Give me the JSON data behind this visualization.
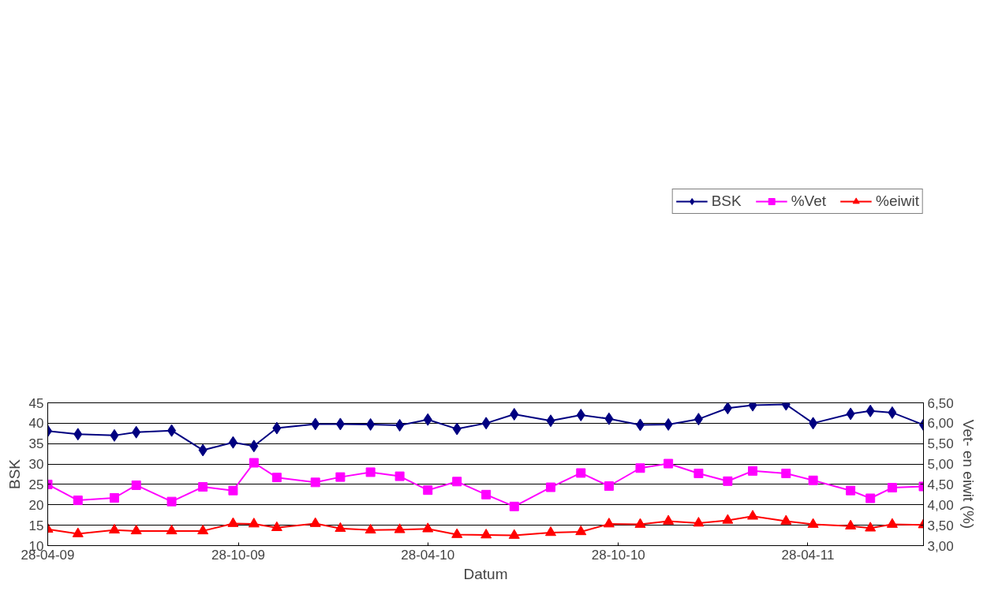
{
  "chart_data": {
    "type": "line",
    "xlabel": "Datum",
    "ylabel": "BSK",
    "y2label": "Vet- en eiwit (%)",
    "x": [
      "2009-04-28",
      "2009-05-27",
      "2009-07-01",
      "2009-07-22",
      "2009-08-25",
      "2009-09-24",
      "2009-10-23",
      "2009-11-12",
      "2009-12-04",
      "2010-01-10",
      "2010-02-03",
      "2010-03-04",
      "2010-04-01",
      "2010-04-28",
      "2010-05-26",
      "2010-06-23",
      "2010-07-20",
      "2010-08-24",
      "2010-09-22",
      "2010-10-19",
      "2010-11-18",
      "2010-12-15",
      "2011-01-13",
      "2011-02-10",
      "2011-03-06",
      "2011-04-07",
      "2011-05-03",
      "2011-06-08",
      "2011-06-27",
      "2011-07-18",
      "2011-08-17"
    ],
    "series": [
      {
        "name": "BSK",
        "color": "#000080",
        "marker": "diamond",
        "values": [
          38.1,
          37.3,
          37.0,
          37.8,
          38.2,
          33.4,
          35.3,
          34.4,
          38.8,
          39.8,
          39.8,
          39.7,
          39.5,
          40.9,
          38.6,
          40.0,
          42.2,
          40.6,
          42.0,
          41.1,
          39.6,
          39.7,
          41.0,
          43.7,
          44.4,
          44.6,
          40.0,
          42.3,
          43.0,
          42.6,
          39.6
        ]
      },
      {
        "name": "%Vet",
        "color": "#ff00ff",
        "marker": "square",
        "axis": "y2",
        "values": [
          4.5,
          4.11,
          4.17,
          4.48,
          4.08,
          4.44,
          4.35,
          5.03,
          4.67,
          4.55,
          4.68,
          4.8,
          4.7,
          4.36,
          4.57,
          4.25,
          3.96,
          4.43,
          4.78,
          4.46,
          4.9,
          5.01,
          4.77,
          4.58,
          4.83,
          4.77,
          4.6,
          4.35,
          4.16,
          4.42,
          4.45
        ]
      },
      {
        "name": "%eiwit",
        "color": "#ff0000",
        "marker": "triangle",
        "axis": "y2",
        "values": [
          3.4,
          3.29,
          3.38,
          3.36,
          3.36,
          3.36,
          3.54,
          3.53,
          3.44,
          3.54,
          3.42,
          3.38,
          3.39,
          3.41,
          3.27,
          3.26,
          3.25,
          3.32,
          3.34,
          3.53,
          3.52,
          3.6,
          3.55,
          3.62,
          3.72,
          3.6,
          3.52,
          3.48,
          3.43,
          3.52,
          3.51
        ]
      }
    ],
    "xlim": [
      "2009-04-28",
      "2011-08-17"
    ],
    "xticks": [
      {
        "value": "2009-04-28",
        "label": "28-04-09"
      },
      {
        "value": "2009-10-28",
        "label": "28-10-09"
      },
      {
        "value": "2010-04-28",
        "label": "28-04-10"
      },
      {
        "value": "2010-10-28",
        "label": "28-10-10"
      },
      {
        "value": "2011-04-28",
        "label": "28-04-11"
      }
    ],
    "ylim": [
      10,
      45
    ],
    "yticks": [
      10,
      15,
      20,
      25,
      30,
      35,
      40,
      45
    ],
    "y2lim": [
      3,
      6.5
    ],
    "y2ticks": [
      {
        "value": 3,
        "label": "3,00"
      },
      {
        "value": 3.5,
        "label": "3,50"
      },
      {
        "value": 4,
        "label": "4,00"
      },
      {
        "value": 4.5,
        "label": "4,50"
      },
      {
        "value": 5,
        "label": "5,00"
      },
      {
        "value": 5.5,
        "label": "5,50"
      },
      {
        "value": 6,
        "label": "6,00"
      },
      {
        "value": 6.5,
        "label": "6,50"
      }
    ],
    "grid": "y",
    "legend": "top right",
    "line_style": "solid"
  }
}
